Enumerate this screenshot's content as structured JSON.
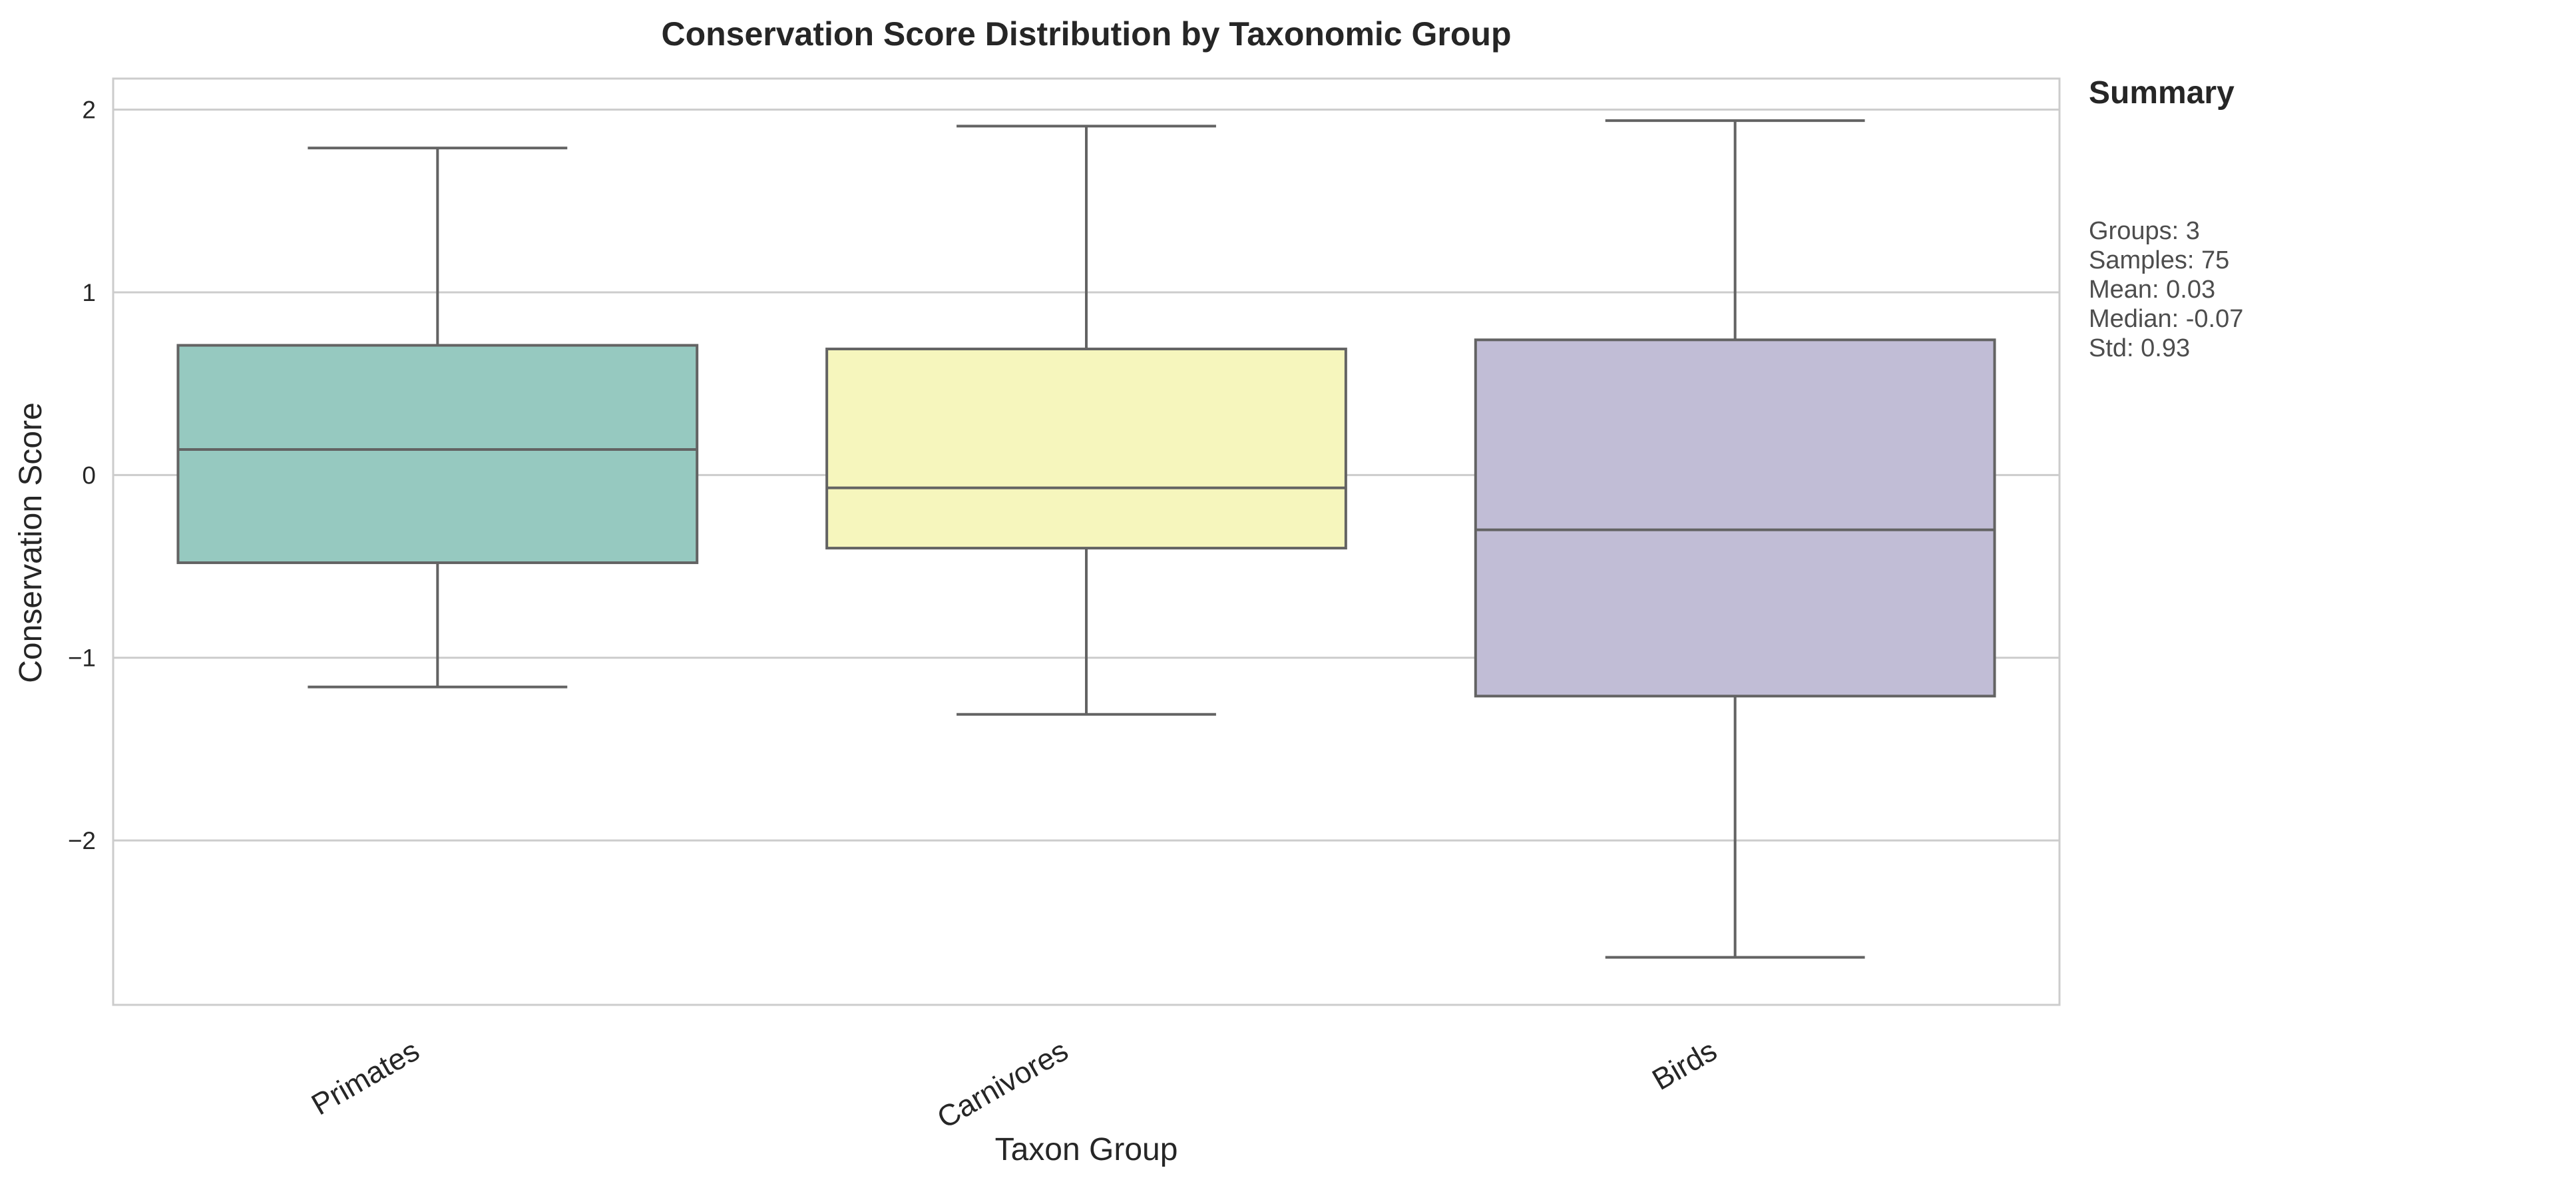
{
  "chart_data": {
    "type": "box",
    "title": "Conservation Score Distribution by Taxonomic Group",
    "xlabel": "Taxon Group",
    "ylabel": "Conservation Score",
    "ylim": [
      -2.9,
      2.17
    ],
    "yticks": [
      2,
      1,
      0,
      -1,
      -2
    ],
    "ytick_labels": [
      "2",
      "1",
      "0",
      "−1",
      "−2"
    ],
    "grid": "horizontal",
    "categories": [
      "Primates",
      "Carnivores",
      "Birds"
    ],
    "boxes": [
      {
        "name": "Primates",
        "min": -1.16,
        "q1": -0.48,
        "median": 0.14,
        "q3": 0.71,
        "max": 1.79,
        "color": "#96c9c0"
      },
      {
        "name": "Carnivores",
        "min": -1.31,
        "q1": -0.4,
        "median": -0.07,
        "q3": 0.69,
        "max": 1.91,
        "color": "#f6f6bd"
      },
      {
        "name": "Birds",
        "min": -2.64,
        "q1": -1.21,
        "median": -0.3,
        "q3": 0.74,
        "max": 1.94,
        "color": "#c1bdd6"
      }
    ]
  },
  "summary": {
    "title": "Summary",
    "lines": [
      "Groups: 3",
      "Samples: 75",
      "Mean: 0.03",
      "Median: -0.07",
      "Std: 0.93"
    ]
  },
  "colors": {
    "grid": "#cccccc",
    "frame": "#cccccc",
    "box_edge": "#636363",
    "text": "#262626"
  }
}
